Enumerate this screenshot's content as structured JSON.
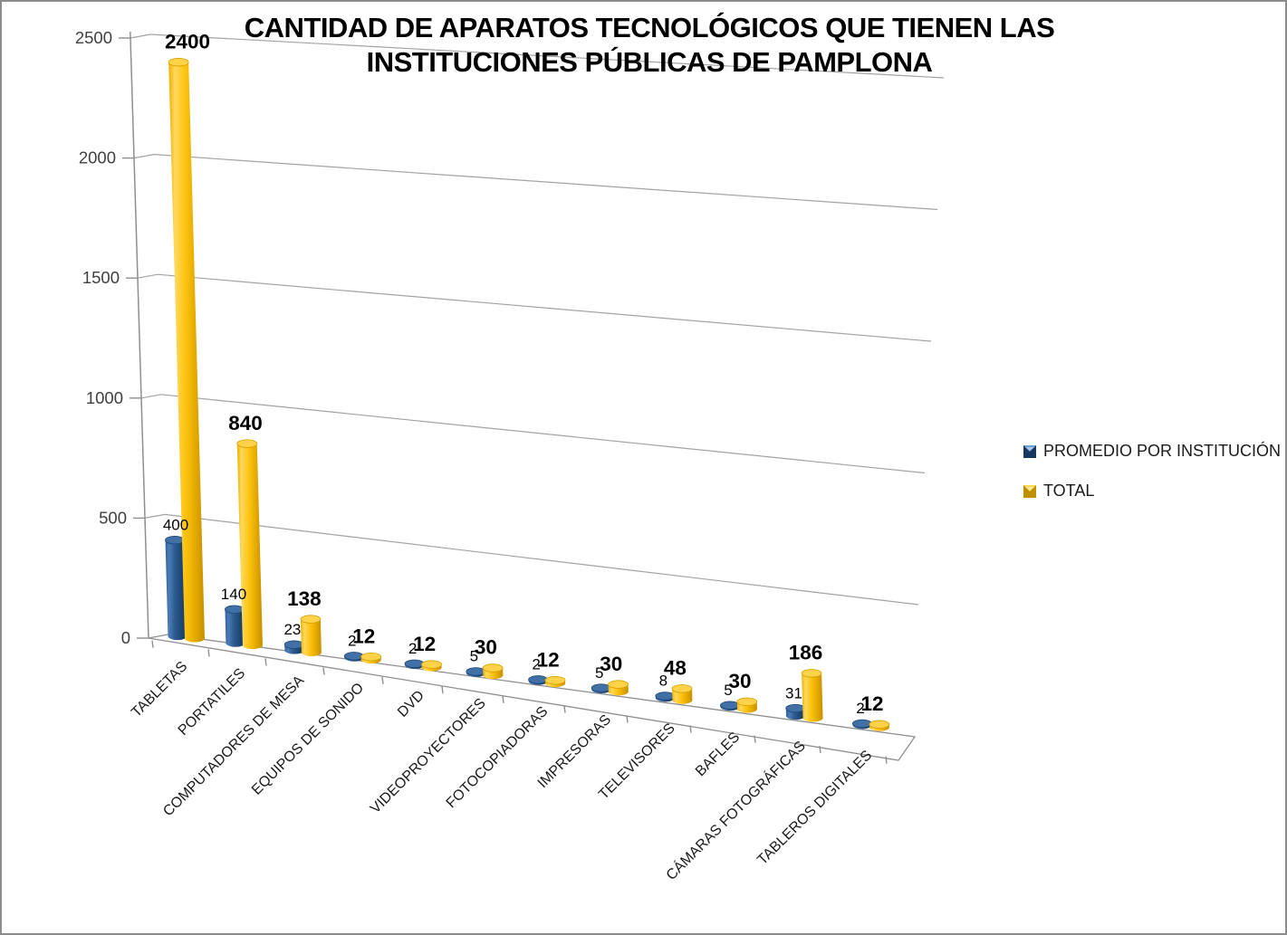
{
  "chart_data": {
    "type": "bar",
    "subtype": "3d-cylinder",
    "title_lines": [
      "CANTIDAD DE APARATOS TECNOLÓGICOS QUE TIENEN LAS",
      "INSTITUCIONES PÚBLICAS DE PAMPLONA"
    ],
    "categories": [
      "TABLETAS",
      "PORTATILES",
      "COMPUTADORES DE MESA",
      "EQUIPOS DE SONIDO",
      "DVD",
      "VIDEOPROYECTORES",
      "FOTOCOPIADORAS",
      "IMPRESORAS",
      "TELEVISORES",
      "BAFLES",
      "CÁMARAS FOTOGRÁFICAS",
      "TABLEROS DIGITALES"
    ],
    "series": [
      {
        "name": "PROMEDIO POR INSTITUCIÓN",
        "color": "#1F4E79",
        "values": [
          400,
          140,
          23,
          2,
          2,
          5,
          2,
          5,
          8,
          5,
          31,
          2
        ]
      },
      {
        "name": "TOTAL",
        "color": "#FFC000",
        "values": [
          2400,
          840,
          138,
          12,
          12,
          30,
          12,
          30,
          48,
          30,
          186,
          12
        ]
      }
    ],
    "ylim": [
      0,
      2500
    ],
    "yticks": [
      0,
      500,
      1000,
      1500,
      2000,
      2500
    ],
    "grid": true,
    "legend_position": "right",
    "data_labels": true
  },
  "colors": {
    "grid_line": "#a3a3a3",
    "axis_line": "#8f8f8f",
    "background": "#ffffff",
    "border": "#8c8c8c",
    "label_text": "#1a1a1a",
    "tick_text": "#404040",
    "blue_light": "#4a7cb5",
    "blue_dark": "#163a63",
    "blue_top": "#4070a6",
    "yellow_light": "#ffd95e",
    "yellow_dark": "#c78f00",
    "yellow_top": "#ffd24a"
  }
}
